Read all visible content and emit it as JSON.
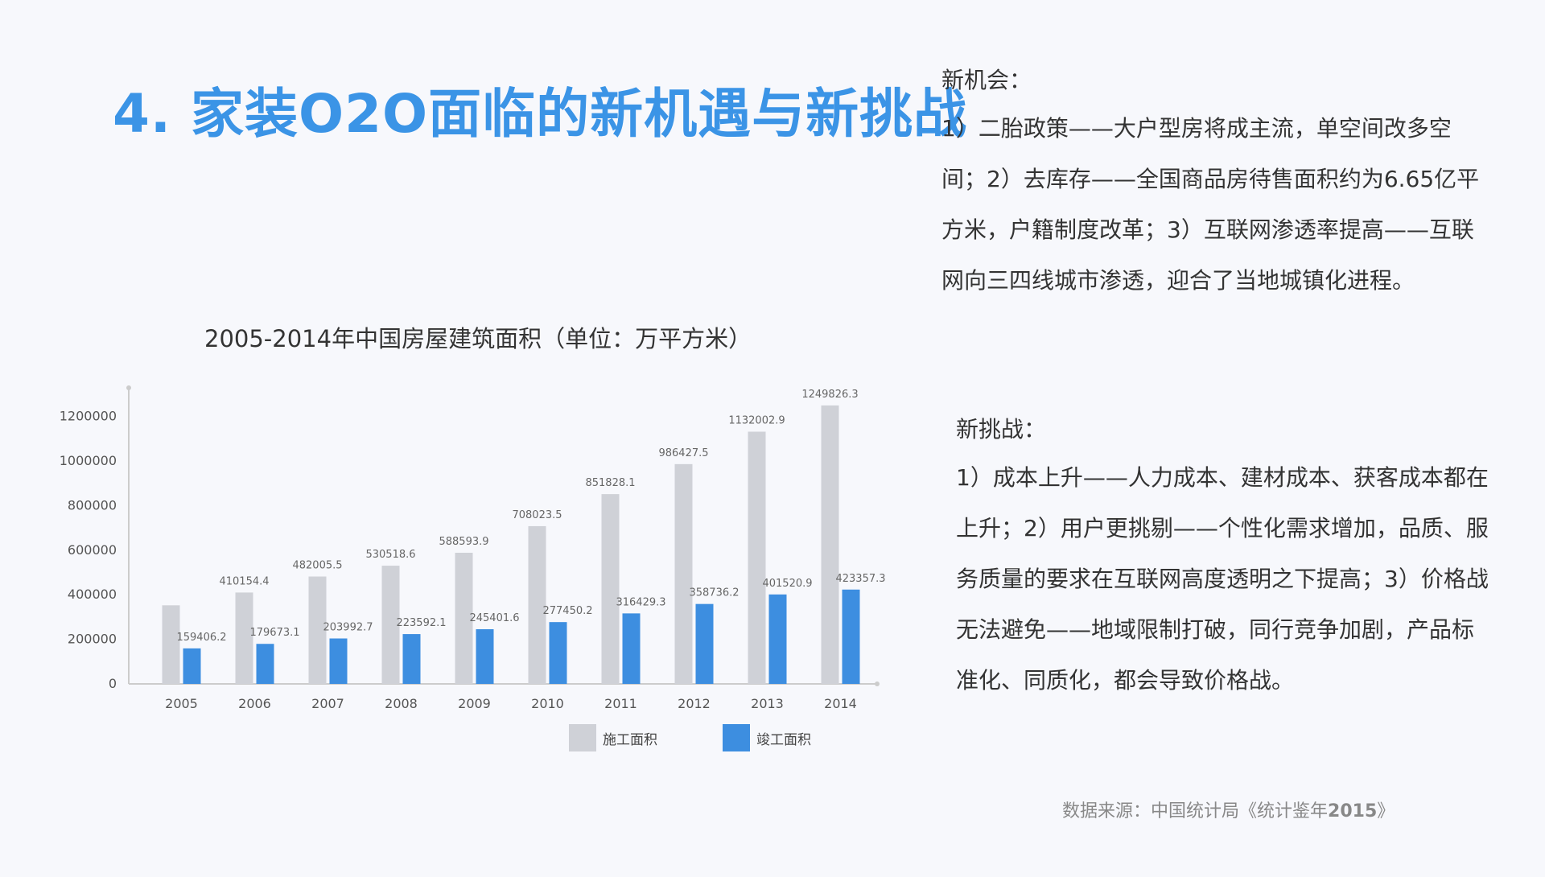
{
  "slide": {
    "title": "4. 家装O2O面临的新机遇与新挑战",
    "opportunity_heading": "新机会：",
    "opportunity_text": "1）二胎政策——大户型房将成主流，单空间改多空间；2）去库存——全国商品房待售面积约为6.65亿平方米，户籍制度改革；3）互联网渗透率提高——互联网向三四线城市渗透，迎合了当地城镇化进程。",
    "challenge_heading": "新挑战：",
    "challenge_text": "1）成本上升——人力成本、建材成本、获客成本都在上升；2）用户更挑剔——个性化需求增加，品质、服务质量的要求在互联网高度透明之下提高；3）价格战无法避免——地域限制打破，同行竞争加剧，产品标准化、同质化，都会导致价格战。",
    "source_prefix": "数据来源：中国统计局《统计鉴年",
    "source_year": "2015",
    "source_suffix": "》"
  },
  "colors": {
    "title_blue": "#3b94e6",
    "construction_gray": "#cfd1d7",
    "completed_blue": "#3d8ee0"
  },
  "chart_data": {
    "type": "bar",
    "title": "2005-2014年中国房屋建筑面积（单位：万平方米）",
    "categories": [
      "2005",
      "2006",
      "2007",
      "2008",
      "2009",
      "2010",
      "2011",
      "2012",
      "2013",
      "2014"
    ],
    "series": [
      {
        "name": "施工面积",
        "values": [
          352744.7,
          410154.4,
          482005.5,
          530518.6,
          588593.9,
          708023.5,
          851828.1,
          986427.5,
          1132002.9,
          1249826.3
        ],
        "labels": [
          "",
          "410154.4",
          "482005.5",
          "530518.6",
          "588593.9",
          "708023.5",
          "851828.1",
          "986427.5",
          "1132002.9",
          "1249826.3"
        ]
      },
      {
        "name": "竣工面积",
        "values": [
          159406.2,
          179673.1,
          203992.7,
          223592.1,
          245401.6,
          277450.2,
          316429.3,
          358736.2,
          401520.9,
          423357.3
        ],
        "labels": [
          "159406.2",
          "179673.1",
          "203992.7",
          "223592.1",
          "245401.6",
          "277450.2",
          "316429.3",
          "358736.2",
          "401520.9",
          "423357.3"
        ]
      }
    ],
    "ylim": [
      0,
      1300000
    ],
    "yticks": [
      "0",
      "200000",
      "400000",
      "600000",
      "800000",
      "1000000",
      "1200000"
    ],
    "legend_position": "bottom",
    "grid": false
  }
}
